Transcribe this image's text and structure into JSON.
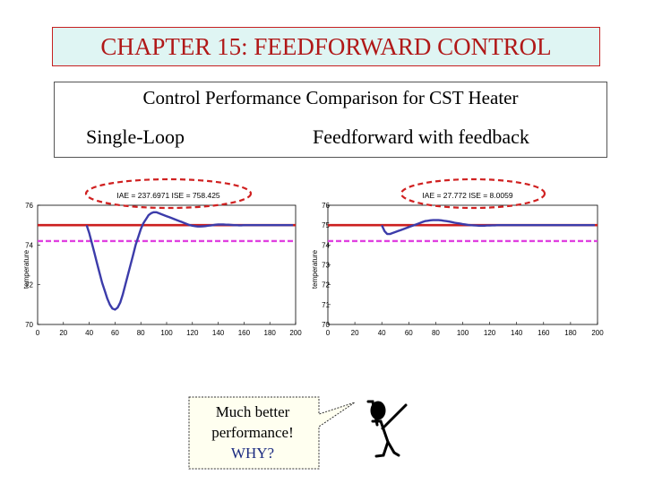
{
  "slide": {
    "title": "CHAPTER 15: FEEDFORWARD CONTROL",
    "subtitle": "Control Performance Comparison for CST Heater",
    "left_label": "Single-Loop",
    "right_label": "Feedforward with feedback",
    "callout_line1": "Much better",
    "callout_line2": "performance!",
    "callout_line3": "WHY?"
  },
  "colors": {
    "title_bg": "#dff5f3",
    "title_text": "#b01818",
    "response": "#3c3caa",
    "setpoint": "#cc1f1f",
    "reference": "#e040e0",
    "annotation_ellipse": "#d02020",
    "callout_bg": "#fffff0"
  },
  "chart_data": [
    {
      "type": "line",
      "title": "IAE = 237.6971 ISE = 758.425",
      "xlabel": "",
      "ylabel": "temperature",
      "xlim": [
        0,
        200
      ],
      "ylim": [
        70,
        76
      ],
      "xticks": [
        0,
        20,
        40,
        60,
        80,
        100,
        120,
        140,
        160,
        180,
        200
      ],
      "yticks": [
        70,
        72,
        74,
        76
      ],
      "ytick_labels": [
        "70",
        "72",
        "74",
        "76"
      ],
      "setpoint": 75,
      "reference": 74.2,
      "series": [
        {
          "x": [
            38,
            40,
            42,
            44,
            46,
            48,
            50,
            52,
            54,
            56,
            58,
            60,
            62,
            64,
            66,
            68,
            70,
            72,
            74,
            76,
            78,
            80,
            82,
            84,
            86,
            88,
            90,
            92,
            94,
            96,
            98,
            100,
            102,
            104,
            106,
            108,
            110,
            112,
            114,
            116,
            118,
            120,
            122,
            124,
            126,
            128,
            130,
            132,
            134,
            136,
            138,
            140,
            142,
            144,
            146,
            148,
            150,
            152,
            154,
            156,
            158,
            160,
            162,
            164,
            166,
            168,
            170,
            172,
            174,
            176,
            178,
            180,
            182,
            184,
            186,
            188,
            190,
            192,
            194,
            196,
            198
          ],
          "values": [
            75,
            74.6,
            74.1,
            73.6,
            73.1,
            72.6,
            72.1,
            71.7,
            71.3,
            71.0,
            70.8,
            70.75,
            70.85,
            71.1,
            71.5,
            72.0,
            72.5,
            73.0,
            73.5,
            74.0,
            74.4,
            74.8,
            75.1,
            75.3,
            75.5,
            75.6,
            75.65,
            75.65,
            75.6,
            75.55,
            75.5,
            75.45,
            75.4,
            75.35,
            75.3,
            75.25,
            75.2,
            75.15,
            75.1,
            75.05,
            75.0,
            74.97,
            74.95,
            74.93,
            74.93,
            74.94,
            74.95,
            74.97,
            74.98,
            75.0,
            75.02,
            75.03,
            75.03,
            75.03,
            75.02,
            75.02,
            75.01,
            75.0,
            75.0,
            74.99,
            74.99,
            75.0,
            75.0,
            75.0,
            75.0,
            75.0,
            75.0,
            75.0,
            75.0,
            75.0,
            75.0,
            75.0,
            75.0,
            75.0,
            75.0,
            75.0,
            75.0,
            75.0,
            75.0,
            75.0,
            75.0
          ]
        }
      ]
    },
    {
      "type": "line",
      "title": "IAE = 27.772 ISE = 8.0059",
      "xlabel": "",
      "ylabel": "temperature",
      "xlim": [
        0,
        200
      ],
      "ylim": [
        70,
        76
      ],
      "xticks": [
        0,
        20,
        40,
        60,
        80,
        100,
        120,
        140,
        160,
        180,
        200
      ],
      "yticks": [
        70,
        71,
        72,
        73,
        74,
        75,
        76
      ],
      "ytick_labels": [
        "70",
        "71",
        "72",
        "73",
        "74",
        "75",
        "76"
      ],
      "setpoint": 75,
      "reference": 74.2,
      "series": [
        {
          "x": [
            40,
            42,
            44,
            46,
            48,
            50,
            52,
            54,
            56,
            58,
            60,
            62,
            64,
            66,
            68,
            70,
            72,
            74,
            76,
            78,
            80,
            82,
            84,
            86,
            88,
            90,
            92,
            94,
            96,
            98,
            100,
            102,
            104,
            106,
            108,
            110,
            112,
            114,
            116,
            118,
            120,
            122,
            124,
            126,
            128,
            130,
            132,
            134,
            136,
            138,
            140,
            142,
            144,
            146,
            148,
            150,
            152,
            154,
            156,
            158,
            160,
            162,
            164,
            166,
            168,
            170,
            172,
            174,
            176,
            178,
            180,
            182,
            184,
            186,
            188,
            190,
            192,
            194,
            196,
            198
          ],
          "values": [
            75,
            74.7,
            74.55,
            74.55,
            74.6,
            74.65,
            74.7,
            74.75,
            74.8,
            74.85,
            74.9,
            74.95,
            75.0,
            75.05,
            75.1,
            75.15,
            75.2,
            75.22,
            75.24,
            75.25,
            75.25,
            75.25,
            75.24,
            75.22,
            75.2,
            75.18,
            75.15,
            75.12,
            75.1,
            75.08,
            75.05,
            75.03,
            75.01,
            75.0,
            74.99,
            74.98,
            74.97,
            74.97,
            74.97,
            74.98,
            74.98,
            74.99,
            74.99,
            75.0,
            75.0,
            75.0,
            75.0,
            75.0,
            75.0,
            75.0,
            75.0,
            75.0,
            75.0,
            75.0,
            75.0,
            75.0,
            75.0,
            75.0,
            75.0,
            75.0,
            75.0,
            75.0,
            75.0,
            75.0,
            75.0,
            75.0,
            75.0,
            75.0,
            75.0,
            75.0,
            75.0,
            75.0,
            75.0,
            75.0,
            75.0,
            75.0,
            75.0,
            75.0,
            75.0,
            75.0
          ]
        }
      ]
    }
  ]
}
